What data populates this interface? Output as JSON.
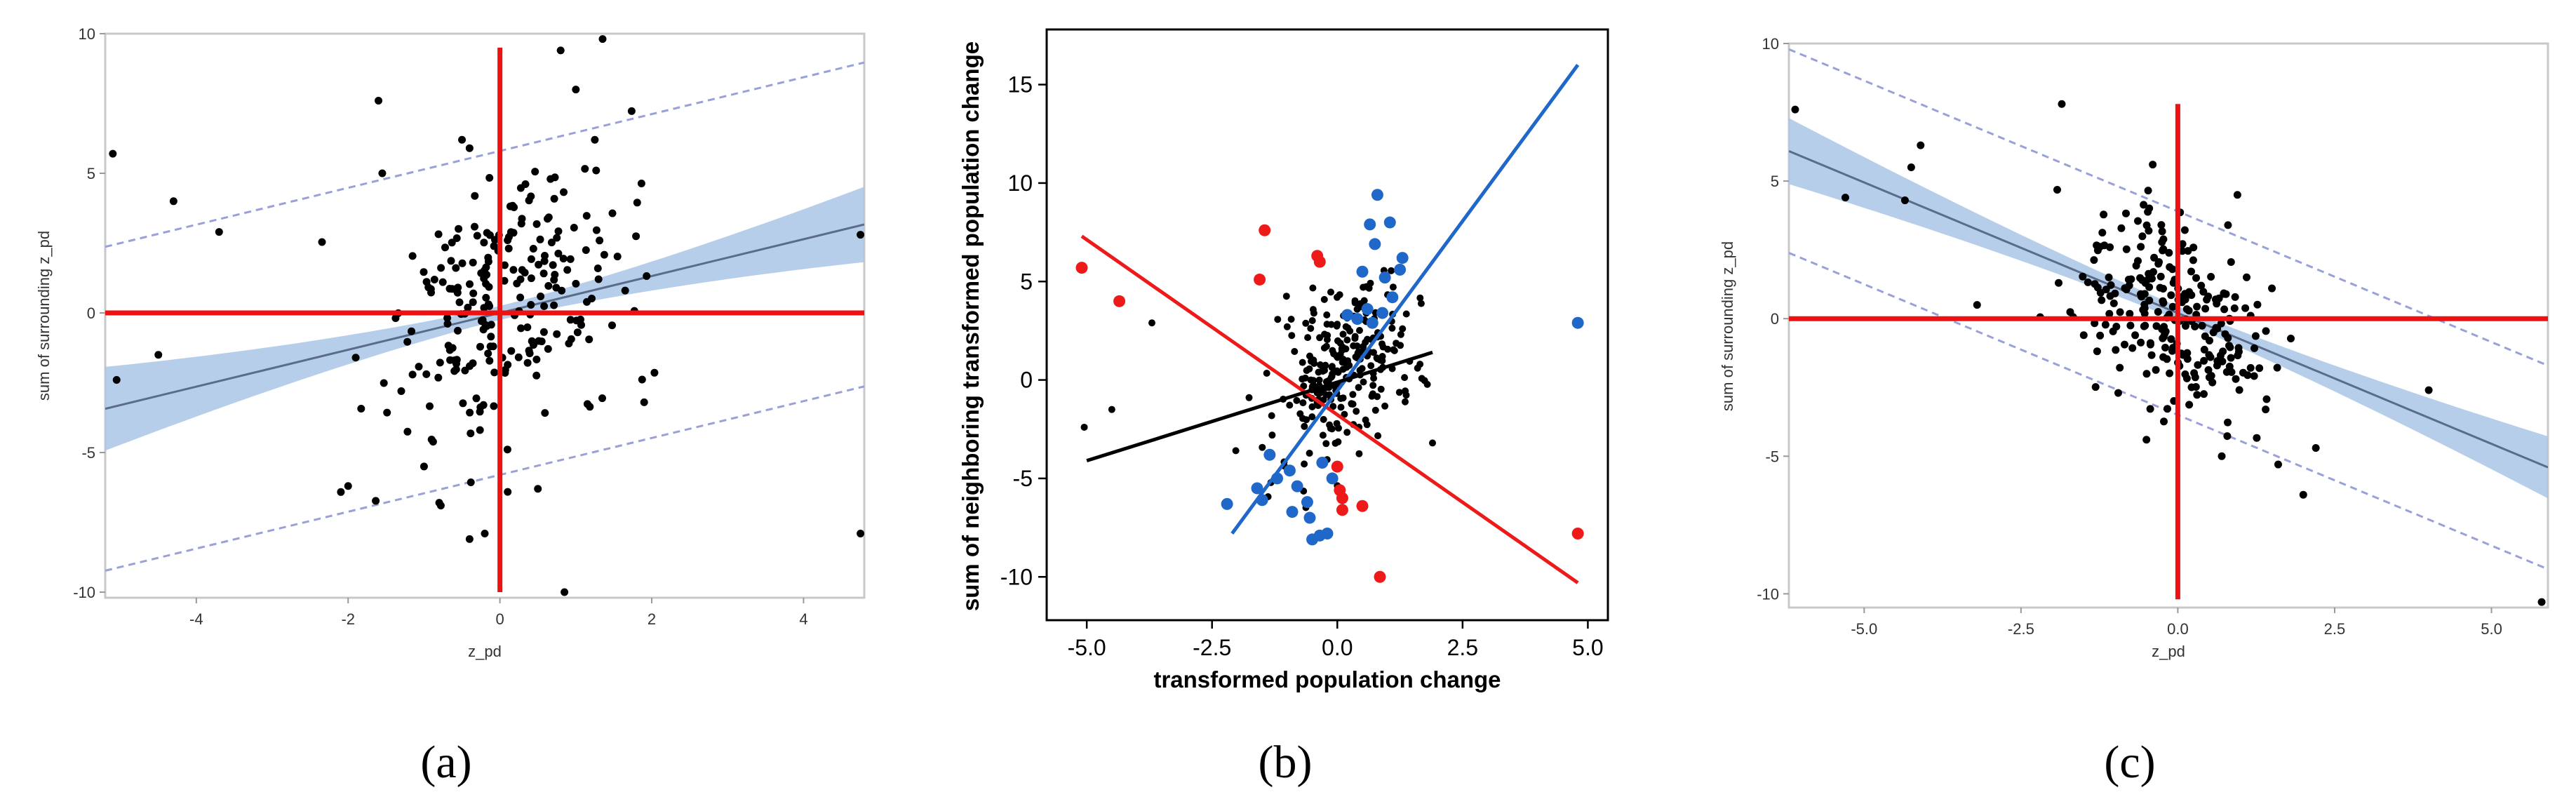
{
  "chart_data": [
    {
      "type": "scatter",
      "panel_label": "(a)",
      "xlabel": "z_pd",
      "ylabel": "sum of surrounding z_pd",
      "xlim": [
        -5.2,
        4.8
      ],
      "ylim": [
        -10.2,
        10
      ],
      "xticks": [
        -4,
        -2,
        0,
        2,
        4
      ],
      "yticks": [
        -10,
        -5,
        0,
        5,
        10
      ],
      "colors": {
        "points": "#000000",
        "fit": "#5a6c8a",
        "band": "#a9c6e6",
        "prediction": "#9aa0d8",
        "axes_cross": "#ee1111"
      },
      "fit": {
        "slope": 0.66,
        "intercept": 0.0
      },
      "confidence_halfwidth": {
        "at_edge": 1.5
      },
      "prediction_halfwidth": 5.8,
      "cross": {
        "x": 0,
        "y": 0,
        "vertical": [
          -10,
          9.5
        ],
        "horizontal": [
          -5.2,
          4.8
        ]
      },
      "points": [
        [
          -5.1,
          5.7
        ],
        [
          -5.05,
          -2.4
        ],
        [
          -4.5,
          -1.5
        ],
        [
          -4.3,
          4.0
        ],
        [
          -3.7,
          2.9
        ],
        [
          -1.6,
          7.6
        ],
        [
          -1.55,
          5.0
        ],
        [
          -2.0,
          -6.2
        ],
        [
          -1.9,
          -1.6
        ],
        [
          -0.5,
          6.2
        ],
        [
          -0.4,
          5.9
        ],
        [
          0.8,
          9.4
        ],
        [
          1.0,
          8.0
        ],
        [
          1.25,
          6.2
        ],
        [
          4.75,
          2.8
        ],
        [
          4.75,
          -7.9
        ],
        [
          0.85,
          -10.0
        ],
        [
          -0.4,
          -8.1
        ],
        [
          -0.2,
          -7.9
        ],
        [
          0.5,
          -6.3
        ],
        [
          1.9,
          -3.2
        ],
        [
          1.65,
          0.8
        ],
        [
          -0.8,
          -6.8
        ],
        [
          -1.0,
          -5.5
        ],
        [
          -1.3,
          -2.8
        ]
      ]
    },
    {
      "type": "scatter",
      "panel_label": "(b)",
      "xlabel": "transformed population change",
      "ylabel": "sum of neighboring transformed population change",
      "xlim": [
        -5.8,
        5.4
      ],
      "ylim": [
        -12.2,
        17.8
      ],
      "xticks": [
        "-5.0",
        "-2.5",
        "0.0",
        "2.5",
        "5.0"
      ],
      "yticks": [
        "-10",
        "-5",
        "0",
        "5",
        "10",
        "15"
      ],
      "xtick_values": [
        -5,
        -2.5,
        0,
        2.5,
        5
      ],
      "ytick_values": [
        -10,
        -5,
        0,
        5,
        10,
        15
      ],
      "colors": {
        "points": "#000000",
        "blue": "#1f68c9",
        "red": "#ee1a1a",
        "black_fit": "#000000"
      },
      "lines": [
        {
          "color": "red",
          "x": [
            -5.1,
            4.8
          ],
          "y": [
            7.3,
            -10.3
          ]
        },
        {
          "color": "blue",
          "x": [
            -2.1,
            4.8
          ],
          "y": [
            -7.8,
            16.0
          ]
        },
        {
          "color": "black",
          "x": [
            -5.0,
            1.9
          ],
          "y": [
            -4.1,
            1.4
          ]
        }
      ],
      "red_points": [
        [
          -5.1,
          5.7
        ],
        [
          -4.35,
          4.0
        ],
        [
          -1.45,
          7.6
        ],
        [
          -1.55,
          5.1
        ],
        [
          -0.4,
          6.3
        ],
        [
          -0.35,
          6.0
        ],
        [
          0.0,
          -4.4
        ],
        [
          0.05,
          -5.6
        ],
        [
          0.1,
          -6.0
        ],
        [
          0.1,
          -6.6
        ],
        [
          0.5,
          -6.4
        ],
        [
          0.85,
          -10.0
        ],
        [
          4.8,
          -7.8
        ]
      ],
      "blue_points": [
        [
          0.8,
          9.4
        ],
        [
          0.65,
          7.9
        ],
        [
          1.05,
          8.0
        ],
        [
          0.75,
          6.9
        ],
        [
          1.3,
          6.2
        ],
        [
          1.25,
          5.6
        ],
        [
          0.95,
          5.2
        ],
        [
          0.5,
          5.5
        ],
        [
          1.1,
          4.2
        ],
        [
          0.9,
          3.4
        ],
        [
          0.6,
          3.6
        ],
        [
          0.4,
          3.1
        ],
        [
          0.2,
          3.3
        ],
        [
          0.7,
          2.9
        ],
        [
          4.8,
          2.9
        ],
        [
          -2.2,
          -6.3
        ],
        [
          -1.6,
          -5.5
        ],
        [
          -1.5,
          -6.1
        ],
        [
          -1.2,
          -5.0
        ],
        [
          -0.95,
          -4.6
        ],
        [
          -0.8,
          -5.4
        ],
        [
          -0.6,
          -6.2
        ],
        [
          -0.55,
          -7.0
        ],
        [
          -0.35,
          -7.9
        ],
        [
          -0.2,
          -7.8
        ],
        [
          -0.5,
          -8.1
        ],
        [
          -0.1,
          -5.0
        ],
        [
          -0.9,
          -6.7
        ],
        [
          -1.35,
          -3.8
        ],
        [
          -0.3,
          -4.2
        ]
      ]
    },
    {
      "type": "scatter",
      "panel_label": "(c)",
      "xlabel": "z_pd",
      "ylabel": "sum of surrounding z_pd",
      "xlim": [
        -6.2,
        5.9
      ],
      "ylim": [
        -10.5,
        10
      ],
      "xticks": [
        "-5.0",
        "-2.5",
        "0.0",
        "2.5",
        "5.0"
      ],
      "yticks": [
        "-10",
        "-5",
        "0",
        "5",
        "10"
      ],
      "xtick_values": [
        -5,
        -2.5,
        0,
        2.5,
        5
      ],
      "ytick_values": [
        -10,
        -5,
        0,
        5,
        10
      ],
      "colors": {
        "points": "#000000",
        "fit": "#5a6c8a",
        "band": "#a9c6e6",
        "prediction": "#9aa0d8",
        "axes_cross": "#ee1111"
      },
      "fit": {
        "slope": -0.95,
        "intercept": 0.2
      },
      "confidence_halfwidth": {
        "at_edge": 1.2
      },
      "prediction_halfwidth": 3.7,
      "cross": {
        "x": 0,
        "y": 0,
        "vertical": [
          -10.2,
          7.8
        ],
        "horizontal": [
          -6.2,
          5.9
        ]
      },
      "points": [
        [
          -6.1,
          7.6
        ],
        [
          -5.3,
          4.4
        ],
        [
          -4.35,
          4.3
        ],
        [
          -4.1,
          6.3
        ],
        [
          -4.25,
          5.5
        ],
        [
          -1.85,
          7.8
        ],
        [
          -0.4,
          5.6
        ],
        [
          -3.2,
          0.5
        ],
        [
          -1.9,
          1.3
        ],
        [
          -1.5,
          -0.6
        ],
        [
          -0.95,
          -2.7
        ],
        [
          0.95,
          4.5
        ],
        [
          0.8,
          3.4
        ],
        [
          2.2,
          -4.7
        ],
        [
          2.0,
          -6.4
        ],
        [
          4.0,
          -2.6
        ],
        [
          5.8,
          -10.3
        ],
        [
          1.6,
          -5.3
        ],
        [
          0.7,
          -5.0
        ],
        [
          -0.5,
          -4.4
        ],
        [
          1.4,
          -3.3
        ],
        [
          1.5,
          1.1
        ],
        [
          1.3,
          -1.8
        ],
        [
          -1.1,
          1.5
        ]
      ]
    }
  ]
}
